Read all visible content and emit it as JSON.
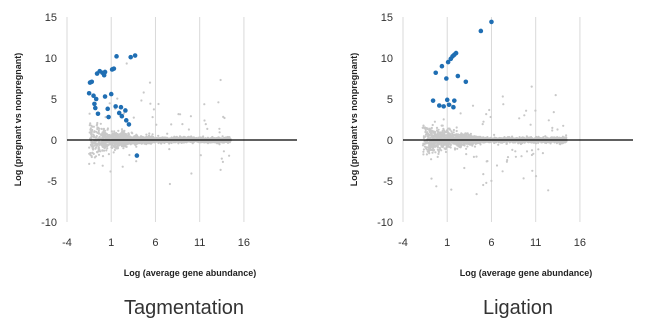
{
  "chart_data": [
    {
      "type": "scatter",
      "caption": "Tagmentation",
      "xlabel": "Log (average gene abundance)",
      "ylabel": "Log (pregnant vs nonpregnant)",
      "xlim": [
        -4,
        22
      ],
      "ylim": [
        -10,
        15
      ],
      "xticks": [
        -4,
        1,
        6,
        11,
        16
      ],
      "yticks": [
        -10,
        -5,
        0,
        5,
        10,
        15
      ],
      "grid": "vertical",
      "colors": {
        "background_points": "#c8c8c8",
        "highlight_points": "#1f6eb3",
        "zero_line": "#000000"
      },
      "background_cloud": {
        "x_range": [
          -1.5,
          14.5
        ],
        "y_center": 0
      },
      "highlighted": [
        {
          "x": -1.4,
          "y": 7.0
        },
        {
          "x": -1.2,
          "y": 7.1
        },
        {
          "x": -0.6,
          "y": 8.1
        },
        {
          "x": -0.3,
          "y": 8.4
        },
        {
          "x": 0.0,
          "y": 8.2
        },
        {
          "x": 0.2,
          "y": 7.9
        },
        {
          "x": 0.3,
          "y": 8.3
        },
        {
          "x": 1.1,
          "y": 8.6
        },
        {
          "x": 1.3,
          "y": 8.7
        },
        {
          "x": 1.6,
          "y": 10.2
        },
        {
          "x": 3.2,
          "y": 10.1
        },
        {
          "x": 3.7,
          "y": 10.3
        },
        {
          "x": -1.5,
          "y": 5.7
        },
        {
          "x": -1.0,
          "y": 5.4
        },
        {
          "x": -0.7,
          "y": 5.0
        },
        {
          "x": -0.9,
          "y": 4.4
        },
        {
          "x": -0.8,
          "y": 3.9
        },
        {
          "x": -0.5,
          "y": 3.2
        },
        {
          "x": 0.3,
          "y": 5.3
        },
        {
          "x": 0.6,
          "y": 3.8
        },
        {
          "x": 0.7,
          "y": 2.8
        },
        {
          "x": 1.0,
          "y": 5.6
        },
        {
          "x": 1.5,
          "y": 4.1
        },
        {
          "x": 1.9,
          "y": 3.3
        },
        {
          "x": 2.1,
          "y": 4.0
        },
        {
          "x": 2.6,
          "y": 3.6
        },
        {
          "x": 2.7,
          "y": 2.4
        },
        {
          "x": 2.2,
          "y": 2.9
        },
        {
          "x": 3.0,
          "y": 1.9
        },
        {
          "x": 3.9,
          "y": -1.9
        }
      ]
    },
    {
      "type": "scatter",
      "caption": "Ligation",
      "xlabel": "Log (average gene abundance)",
      "ylabel": "Log (pregnant vs nonpregnant)",
      "xlim": [
        -4,
        22
      ],
      "ylim": [
        -10,
        15
      ],
      "xticks": [
        -4,
        1,
        6,
        11,
        16
      ],
      "yticks": [
        -10,
        -5,
        0,
        5,
        10,
        15
      ],
      "grid": "vertical",
      "colors": {
        "background_points": "#c8c8c8",
        "highlight_points": "#1f6eb3",
        "zero_line": "#000000"
      },
      "background_cloud": {
        "x_range": [
          -1.8,
          14.5
        ],
        "y_center": 0
      },
      "highlighted": [
        {
          "x": 6.0,
          "y": 14.4
        },
        {
          "x": 4.8,
          "y": 13.3
        },
        {
          "x": 2.0,
          "y": 10.6
        },
        {
          "x": 1.8,
          "y": 10.4
        },
        {
          "x": 1.6,
          "y": 10.2
        },
        {
          "x": 1.4,
          "y": 9.9
        },
        {
          "x": 1.1,
          "y": 9.5
        },
        {
          "x": 0.4,
          "y": 9.0
        },
        {
          "x": -0.3,
          "y": 8.2
        },
        {
          "x": 0.9,
          "y": 7.5
        },
        {
          "x": 2.2,
          "y": 7.8
        },
        {
          "x": 3.1,
          "y": 7.1
        },
        {
          "x": -0.6,
          "y": 4.8
        },
        {
          "x": 1.0,
          "y": 4.9
        },
        {
          "x": 1.8,
          "y": 4.8
        },
        {
          "x": 0.1,
          "y": 4.2
        },
        {
          "x": 1.2,
          "y": 4.3
        },
        {
          "x": 1.7,
          "y": 4.0
        },
        {
          "x": 0.6,
          "y": 4.1
        }
      ]
    }
  ]
}
